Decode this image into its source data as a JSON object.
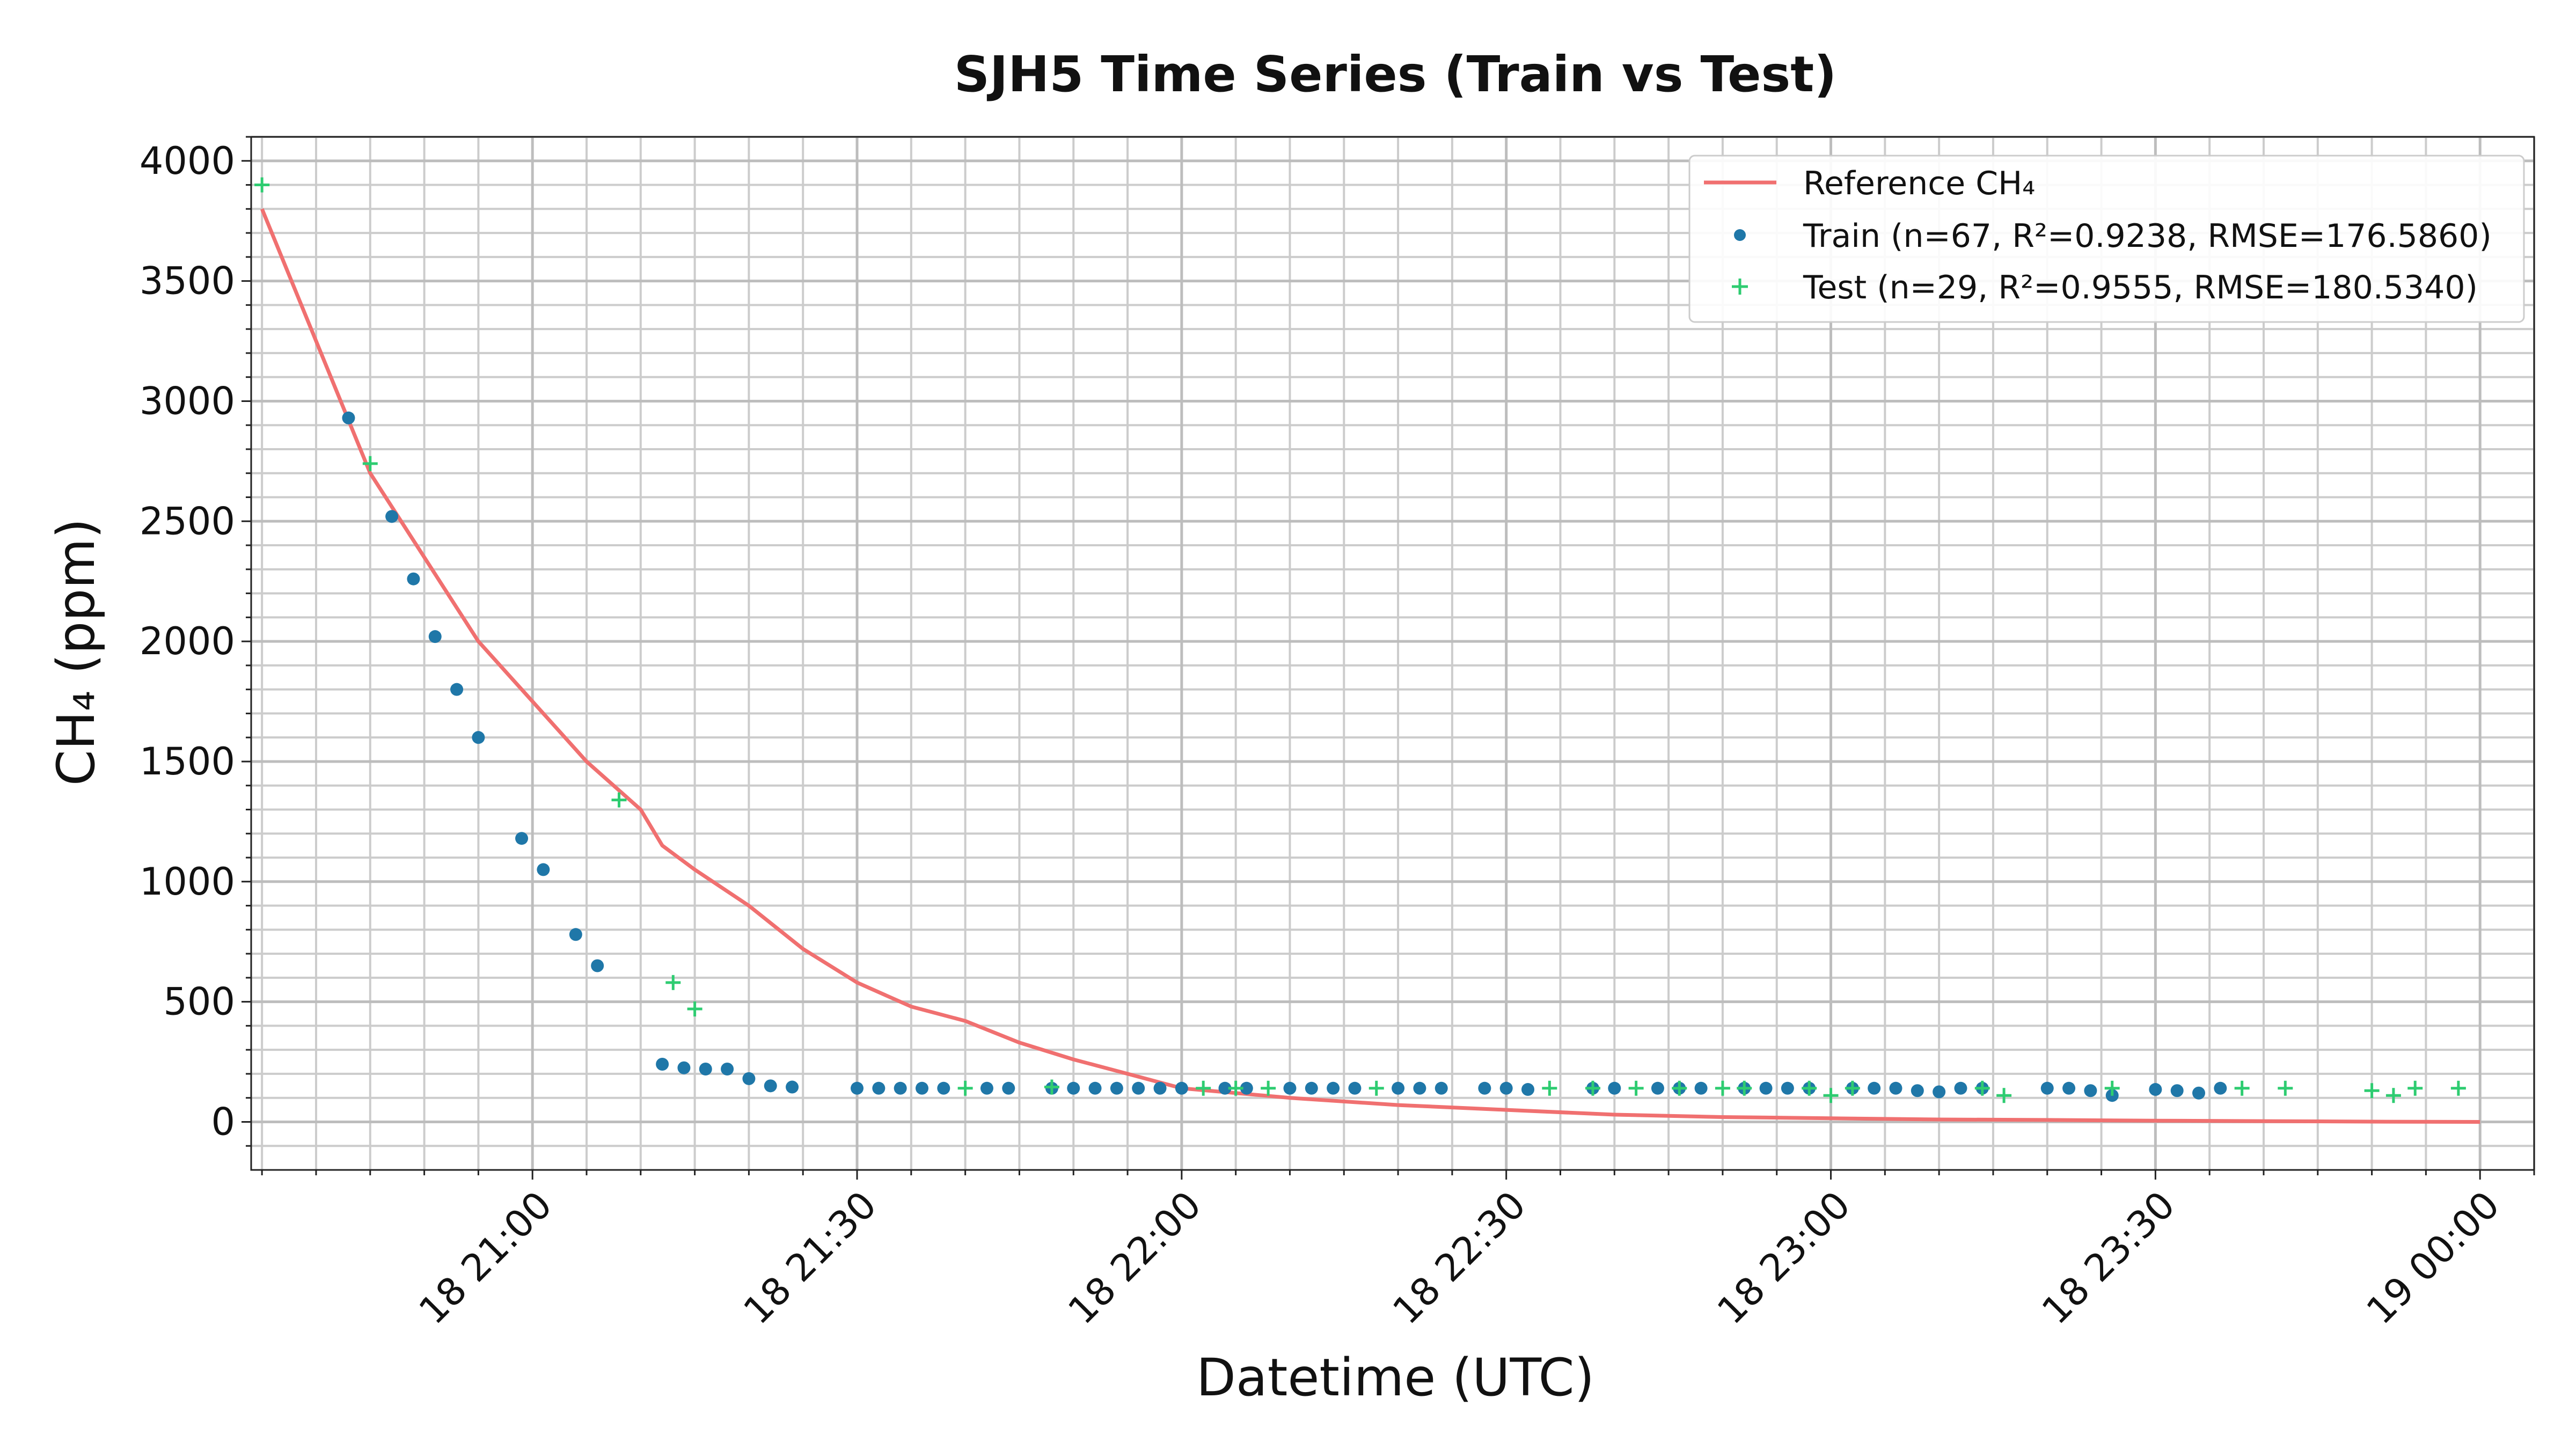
{
  "chart_data": {
    "type": "line+scatter",
    "title": "SJH5 Time Series (Train vs Test)",
    "xlabel": "Datetime (UTC)",
    "ylabel": "CH₄ (ppm)",
    "x_unit": "time (UTC), 18 20:35 to 19 00:00",
    "xlim": [
      "18 20:34",
      "19 00:05"
    ],
    "ylim": [
      -200,
      4100
    ],
    "x_ticks": [
      "18 21:00",
      "18 21:30",
      "18 22:00",
      "18 22:30",
      "18 23:00",
      "18 23:30",
      "19 00:00"
    ],
    "y_ticks": [
      0,
      500,
      1000,
      1500,
      2000,
      2500,
      3000,
      3500,
      4000
    ],
    "grid": true,
    "legend_position": "top-right",
    "colors": {
      "reference": "#f07070",
      "train": "#1f77a8",
      "test": "#2ecc71"
    },
    "reference": {
      "name": "Reference CH₄",
      "x": [
        "20:35",
        "20:40",
        "20:45",
        "20:50",
        "20:55",
        "21:00",
        "21:05",
        "21:10",
        "21:12",
        "21:15",
        "21:20",
        "21:25",
        "21:30",
        "21:35",
        "21:40",
        "21:45",
        "21:50",
        "21:55",
        "22:00",
        "22:10",
        "22:20",
        "22:30",
        "22:40",
        "22:50",
        "23:00",
        "23:10",
        "23:20",
        "23:30",
        "23:40",
        "23:50",
        "24:00"
      ],
      "y": [
        3800,
        3250,
        2700,
        2350,
        2000,
        1750,
        1500,
        1300,
        1150,
        1050,
        900,
        720,
        580,
        480,
        420,
        330,
        260,
        200,
        140,
        100,
        70,
        50,
        30,
        20,
        15,
        10,
        8,
        5,
        3,
        1,
        0
      ]
    },
    "series": [
      {
        "name": "Train (n=67, R²=0.9238, RMSE=176.5860)",
        "marker": "dot",
        "x": [
          "20:43",
          "20:47",
          "20:49",
          "20:51",
          "20:53",
          "20:55",
          "20:59",
          "21:01",
          "21:04",
          "21:06",
          "21:12",
          "21:14",
          "21:16",
          "21:18",
          "21:20",
          "21:22",
          "21:24",
          "21:30",
          "21:32",
          "21:34",
          "21:36",
          "21:38",
          "21:42",
          "21:44",
          "21:48",
          "21:50",
          "21:52",
          "21:54",
          "21:56",
          "21:58",
          "22:00",
          "22:04",
          "22:06",
          "22:10",
          "22:12",
          "22:14",
          "22:16",
          "22:20",
          "22:22",
          "22:24",
          "22:28",
          "22:30",
          "22:32",
          "22:38",
          "22:40",
          "22:44",
          "22:46",
          "22:48",
          "22:52",
          "22:54",
          "22:56",
          "22:58",
          "23:02",
          "23:04",
          "23:06",
          "23:08",
          "23:10",
          "23:12",
          "23:14",
          "23:20",
          "23:22",
          "23:24",
          "23:26",
          "23:30",
          "23:32",
          "23:34",
          "23:36"
        ],
        "y": [
          2930,
          2520,
          2260,
          2020,
          1800,
          1600,
          1180,
          1050,
          780,
          650,
          240,
          225,
          220,
          220,
          180,
          150,
          145,
          140,
          140,
          140,
          140,
          140,
          140,
          140,
          140,
          140,
          140,
          140,
          140,
          140,
          140,
          140,
          140,
          140,
          140,
          140,
          140,
          140,
          140,
          140,
          140,
          140,
          135,
          140,
          140,
          140,
          140,
          140,
          140,
          140,
          140,
          140,
          140,
          140,
          140,
          130,
          125,
          140,
          140,
          140,
          140,
          130,
          110,
          135,
          130,
          120,
          140
        ]
      },
      {
        "name": "Test (n=29, R²=0.9555, RMSE=180.5340)",
        "marker": "plus",
        "x": [
          "20:35",
          "20:45",
          "21:08",
          "21:13",
          "21:15",
          "21:40",
          "21:48",
          "22:02",
          "22:05",
          "22:08",
          "22:18",
          "22:34",
          "22:38",
          "22:42",
          "22:46",
          "22:50",
          "22:52",
          "22:58",
          "23:00",
          "23:02",
          "23:14",
          "23:16",
          "23:26",
          "23:38",
          "23:42",
          "23:50",
          "23:52",
          "23:54",
          "23:58"
        ],
        "y": [
          3900,
          2740,
          1340,
          580,
          470,
          140,
          145,
          140,
          140,
          140,
          140,
          140,
          140,
          140,
          140,
          140,
          140,
          140,
          110,
          140,
          140,
          110,
          140,
          140,
          140,
          130,
          110,
          140,
          140
        ]
      }
    ]
  }
}
